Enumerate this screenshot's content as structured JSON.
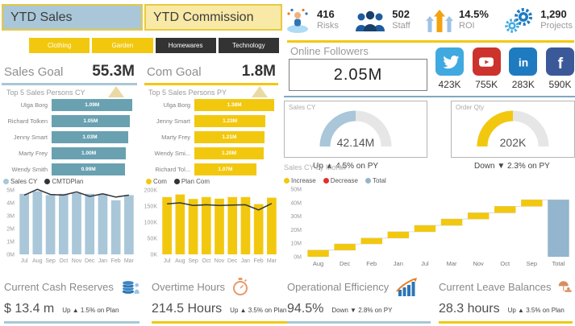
{
  "header": {
    "ytd_sales_title": "YTD Sales",
    "ytd_commission_title": "YTD Commission",
    "kpis": [
      {
        "icon": "juggler-icon",
        "value": "416",
        "label": "Risks"
      },
      {
        "icon": "staff-icon",
        "value": "502",
        "label": "Staff"
      },
      {
        "icon": "growth-arrows-icon",
        "value": "14.5%",
        "label": "ROI"
      },
      {
        "icon": "gears-icon",
        "value": "1,290",
        "label": "Projects"
      }
    ]
  },
  "filters": [
    {
      "label": "Clothing",
      "active": true
    },
    {
      "label": "Garden",
      "active": true
    },
    {
      "label": "Homewares",
      "active": false
    },
    {
      "label": "Technology",
      "active": false
    }
  ],
  "sales_goal": {
    "label": "Sales Goal",
    "value": "55.3M"
  },
  "com_goal": {
    "label": "Com Goal",
    "value": "1.8M"
  },
  "online_followers": {
    "title": "Online Followers",
    "value": "2.05M",
    "social": [
      {
        "network": "twitter",
        "value": "423K",
        "color": "#3FA9E0"
      },
      {
        "network": "youtube",
        "value": "755K",
        "color": "#CC332C"
      },
      {
        "network": "linkedin",
        "value": "283K",
        "color": "#1F7BC0"
      },
      {
        "network": "facebook",
        "value": "590K",
        "color": "#3B5998"
      }
    ]
  },
  "gauges": [
    {
      "title": "Sales CY",
      "value": "42.14M",
      "fraction": 0.5,
      "color": "#A9C7D8",
      "trend": "Up ▲ 4.5% on PY"
    },
    {
      "title": "Order Qty",
      "value": "202K",
      "fraction": 0.5,
      "color": "#F2C80F",
      "trend": "Down ▼ 2.3% on PY"
    }
  ],
  "bottom_kpis": [
    {
      "title": "Current Cash Reserves",
      "icon": "coins-icon",
      "value": "$ 13.4 m",
      "trend": "Up ▲ 1.5% on Plan",
      "accent": "#A9C7D8"
    },
    {
      "title": "Overtime Hours",
      "icon": "stopwatch-icon",
      "value": "214.5 Hours",
      "trend": "Up ▲ 3.5% on Plan",
      "accent": "#F2C80F"
    },
    {
      "title": "Operational Efficiency",
      "icon": "bar-chart-icon",
      "value": "94.5%",
      "trend": "Down ▼ 2.8% on PY",
      "accent": "#A9C7D8"
    },
    {
      "title": "Current Leave Balances",
      "icon": "vacation-icon",
      "value": "28.3 hours",
      "trend": "Up ▲ 3.5% on Plan",
      "accent": "#F2C80F"
    }
  ],
  "chart_data": [
    {
      "type": "bar",
      "orientation": "horizontal",
      "title": "Top 5 Sales Persons CY",
      "categories": [
        "Ulga Borg",
        "Richard Tolken",
        "Jenny Smart",
        "Marty Frey",
        "Wendy Smith"
      ],
      "values": [
        1.09,
        1.05,
        1.03,
        1.0,
        0.99
      ],
      "data_labels": [
        "1.09M",
        "1.05M",
        "1.03M",
        "1.00M",
        "0.99M"
      ],
      "bar_color": "#69A1B1",
      "xlim": [
        0,
        1.15
      ]
    },
    {
      "type": "bar",
      "orientation": "horizontal",
      "title": "Top 5 Sales Persons PY",
      "categories": [
        "Ulga Borg",
        "Jenny Smart",
        "Marty Frey",
        "Wendy Smi...",
        "Richard Tol..."
      ],
      "values": [
        1.38,
        1.23,
        1.21,
        1.2,
        1.07
      ],
      "data_labels": [
        "1.38M",
        "1.23M",
        "1.21M",
        "1.20M",
        "1.07M"
      ],
      "bar_color": "#F2C80F",
      "xlim": [
        0,
        1.45
      ]
    },
    {
      "type": "column+line",
      "legend": [
        {
          "name": "Sales CY",
          "color": "#A9C7D8"
        },
        {
          "name": "CMTDPlan",
          "color": "#31353A"
        }
      ],
      "categories": [
        "Jul",
        "Aug",
        "Sep",
        "Oct",
        "Nov",
        "Dec",
        "Jan",
        "Feb",
        "Mar"
      ],
      "columns": [
        4.7,
        4.9,
        4.6,
        4.7,
        4.75,
        4.7,
        4.7,
        4.2,
        4.6
      ],
      "line": [
        4.6,
        5.05,
        4.65,
        4.6,
        4.85,
        4.5,
        4.7,
        4.45,
        4.6
      ],
      "ylim": [
        0,
        5
      ],
      "yticks": [
        {
          "v": 0,
          "label": "0M"
        },
        {
          "v": 1,
          "label": "1M"
        },
        {
          "v": 2,
          "label": "2M"
        },
        {
          "v": 3,
          "label": "3M"
        },
        {
          "v": 4,
          "label": "4M"
        },
        {
          "v": 5,
          "label": "5M"
        }
      ],
      "column_color": "#A9C7D8",
      "line_color": "#31353A"
    },
    {
      "type": "column+line",
      "legend": [
        {
          "name": "Com",
          "color": "#F2C80F"
        },
        {
          "name": "Plan Com",
          "color": "#31353A"
        }
      ],
      "categories": [
        "Jul",
        "Aug",
        "Sep",
        "Oct",
        "Nov",
        "Dec",
        "Jan",
        "Feb",
        "Mar"
      ],
      "columns": [
        178,
        186,
        172,
        178,
        173,
        178,
        178,
        156,
        176
      ],
      "line": [
        157,
        160,
        152,
        154,
        152,
        153,
        154,
        138,
        158
      ],
      "ylim": [
        0,
        200
      ],
      "yticks": [
        {
          "v": 0,
          "label": "0K"
        },
        {
          "v": 50,
          "label": "50K"
        },
        {
          "v": 100,
          "label": "100K"
        },
        {
          "v": 150,
          "label": "150K"
        },
        {
          "v": 200,
          "label": "200K"
        }
      ],
      "column_color": "#F2C80F",
      "line_color": "#31353A"
    },
    {
      "type": "waterfall",
      "title": "Sales CY by Month",
      "legend": [
        {
          "name": "Increase",
          "color": "#F2C80F"
        },
        {
          "name": "Decrease",
          "color": "#E0302D"
        },
        {
          "name": "Total",
          "color": "#93B5CE"
        }
      ],
      "categories": [
        "Aug",
        "Dec",
        "Feb",
        "Jan",
        "Jul",
        "Mar",
        "Nov",
        "Oct",
        "Sep",
        "Total"
      ],
      "steps": [
        {
          "start": 0,
          "end": 4.9
        },
        {
          "start": 4.9,
          "end": 9.5
        },
        {
          "start": 9.5,
          "end": 13.8
        },
        {
          "start": 13.8,
          "end": 18.5
        },
        {
          "start": 18.5,
          "end": 23.2
        },
        {
          "start": 23.2,
          "end": 27.9
        },
        {
          "start": 27.9,
          "end": 32.5
        },
        {
          "start": 32.5,
          "end": 37.3
        },
        {
          "start": 37.3,
          "end": 42.14
        },
        {
          "start": 0,
          "end": 42.14,
          "total": true
        }
      ],
      "ylim": [
        0,
        50
      ],
      "yticks": [
        {
          "v": 0,
          "label": "0M"
        },
        {
          "v": 10,
          "label": "10M"
        },
        {
          "v": 20,
          "label": "20M"
        },
        {
          "v": 30,
          "label": "30M"
        },
        {
          "v": 40,
          "label": "40M"
        },
        {
          "v": 50,
          "label": "50M"
        }
      ],
      "increase_color": "#F2C80F",
      "decrease_color": "#E0302D",
      "total_color": "#93B5CE"
    }
  ]
}
